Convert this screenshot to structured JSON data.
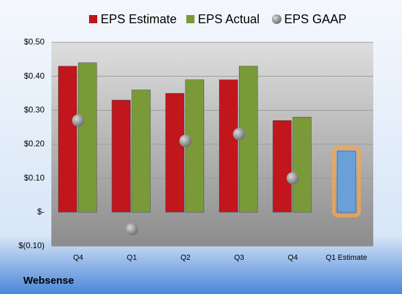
{
  "chart_data": {
    "type": "bar",
    "categories": [
      "Q4",
      "Q1",
      "Q2",
      "Q3",
      "Q4",
      "Q1 Estimate"
    ],
    "series": [
      {
        "name": "EPS Estimate",
        "color": "#c0161c",
        "values": [
          0.43,
          0.33,
          0.35,
          0.39,
          0.27,
          0.18
        ]
      },
      {
        "name": "EPS Actual",
        "color": "#7a9a3a",
        "values": [
          0.44,
          0.36,
          0.39,
          0.43,
          0.28,
          null
        ]
      },
      {
        "name": "EPS GAAP",
        "color": "#8a8a8a",
        "marker": "circle",
        "values": [
          0.27,
          -0.05,
          0.21,
          0.23,
          0.1,
          null
        ]
      }
    ],
    "highlight": {
      "series": 0,
      "index": 5,
      "color": "#6a9fd8",
      "glow": "#f2a650"
    },
    "ylim": [
      -0.1,
      0.5
    ],
    "yticks": [
      {
        "value": -0.1,
        "label": "$(0.10)"
      },
      {
        "value": 0,
        "label": "$-"
      },
      {
        "value": 0.1,
        "label": "$0.10"
      },
      {
        "value": 0.2,
        "label": "$0.20"
      },
      {
        "value": 0.3,
        "label": "$0.30"
      },
      {
        "value": 0.4,
        "label": "$0.40"
      },
      {
        "value": 0.5,
        "label": "$0.50"
      }
    ],
    "grid": true,
    "legend": "top",
    "footer": "Websense"
  }
}
